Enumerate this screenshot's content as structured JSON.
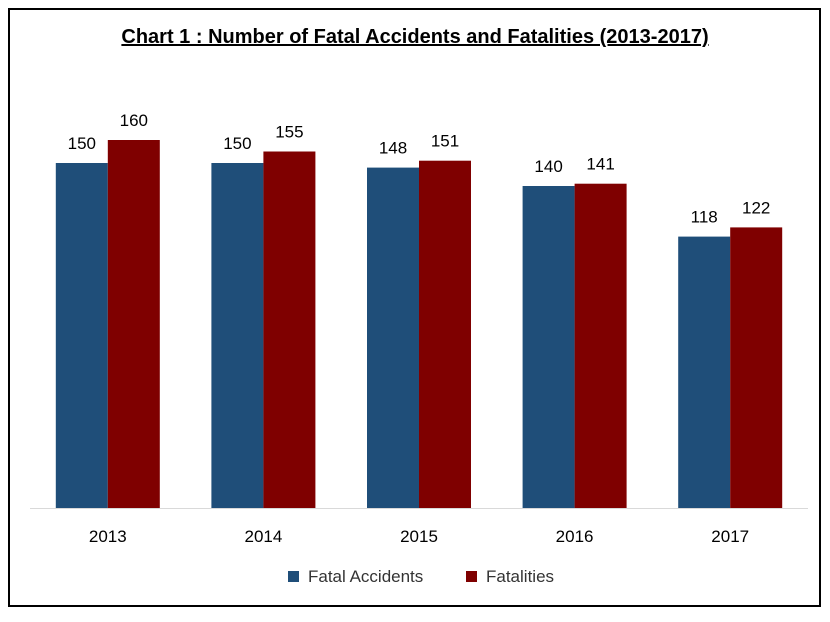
{
  "chart_data": {
    "type": "bar",
    "title": "Chart 1 : Number of Fatal Accidents and Fatalities (2013-2017)",
    "categories": [
      "2013",
      "2014",
      "2015",
      "2016",
      "2017"
    ],
    "series": [
      {
        "name": "Fatal Accidents",
        "values": [
          150,
          150,
          148,
          140,
          118
        ],
        "color": "#1f4e79"
      },
      {
        "name": "Fatalities",
        "values": [
          160,
          155,
          151,
          141,
          122
        ],
        "color": "#7f0000"
      }
    ],
    "ylim": [
      0,
      170
    ],
    "grid": false,
    "legend_position": "bottom"
  }
}
